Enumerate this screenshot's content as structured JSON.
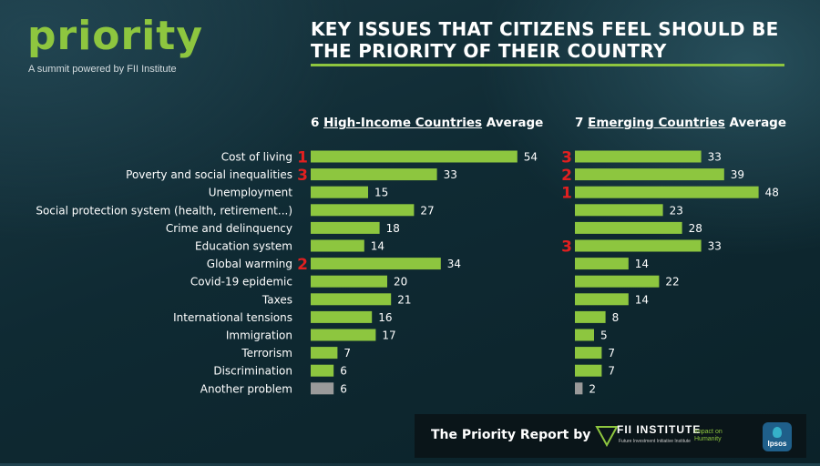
{
  "header": {
    "logo": "priority",
    "tagline": "A summit powered by FII Institute",
    "title": "KEY ISSUES THAT CITIZENS FEEL SHOULD BE THE PRIORITY OF THEIR COUNTRY"
  },
  "columns": {
    "left": {
      "prefix": "6 ",
      "underlined": "High-Income Countries",
      "suffix": " Average"
    },
    "right": {
      "prefix": "7 ",
      "underlined": "Emerging Countries",
      "suffix": " Average"
    }
  },
  "colors": {
    "bar": "#8dc63f",
    "bar_muted": "#9a9a9a",
    "rank": "#e02020",
    "accent": "#8ec63f"
  },
  "chart_data": [
    {
      "type": "bar",
      "orientation": "horizontal",
      "title": "6 High-Income Countries Average",
      "categories": [
        "Cost of living",
        "Poverty and social inequalities",
        "Unemployment",
        "Social protection system (health, retirement...)",
        "Crime and delinquency",
        "Education system",
        "Global warming",
        "Covid-19 epidemic",
        "Taxes",
        "International tensions",
        "Immigration",
        "Terrorism",
        "Discrimination",
        "Another problem"
      ],
      "values": [
        54,
        33,
        15,
        27,
        18,
        14,
        34,
        20,
        21,
        16,
        17,
        7,
        6,
        6
      ],
      "ranks": [
        "1",
        "3",
        "",
        "",
        "",
        "",
        "2",
        "",
        "",
        "",
        "",
        "",
        "",
        ""
      ],
      "grid": false
    },
    {
      "type": "bar",
      "orientation": "horizontal",
      "title": "7 Emerging Countries Average",
      "categories": [
        "Cost of living",
        "Poverty and social inequalities",
        "Unemployment",
        "Social protection system (health, retirement...)",
        "Crime and delinquency",
        "Education system",
        "Global warming",
        "Covid-19 epidemic",
        "Taxes",
        "International tensions",
        "Immigration",
        "Terrorism",
        "Discrimination",
        "Another problem"
      ],
      "values": [
        33,
        39,
        48,
        23,
        28,
        33,
        14,
        22,
        14,
        8,
        5,
        7,
        7,
        2
      ],
      "ranks": [
        "3",
        "2",
        "1",
        "",
        "",
        "3",
        "",
        "",
        "",
        "",
        "",
        "",
        "",
        ""
      ],
      "grid": false
    }
  ],
  "footer": {
    "text": "The Priority Report by",
    "fii_name": "FII INSTITUTE",
    "fii_sub": "Future Investment Initiative Institute",
    "fii_impact": "Impact on Humanity",
    "ipsos": "Ipsos"
  }
}
